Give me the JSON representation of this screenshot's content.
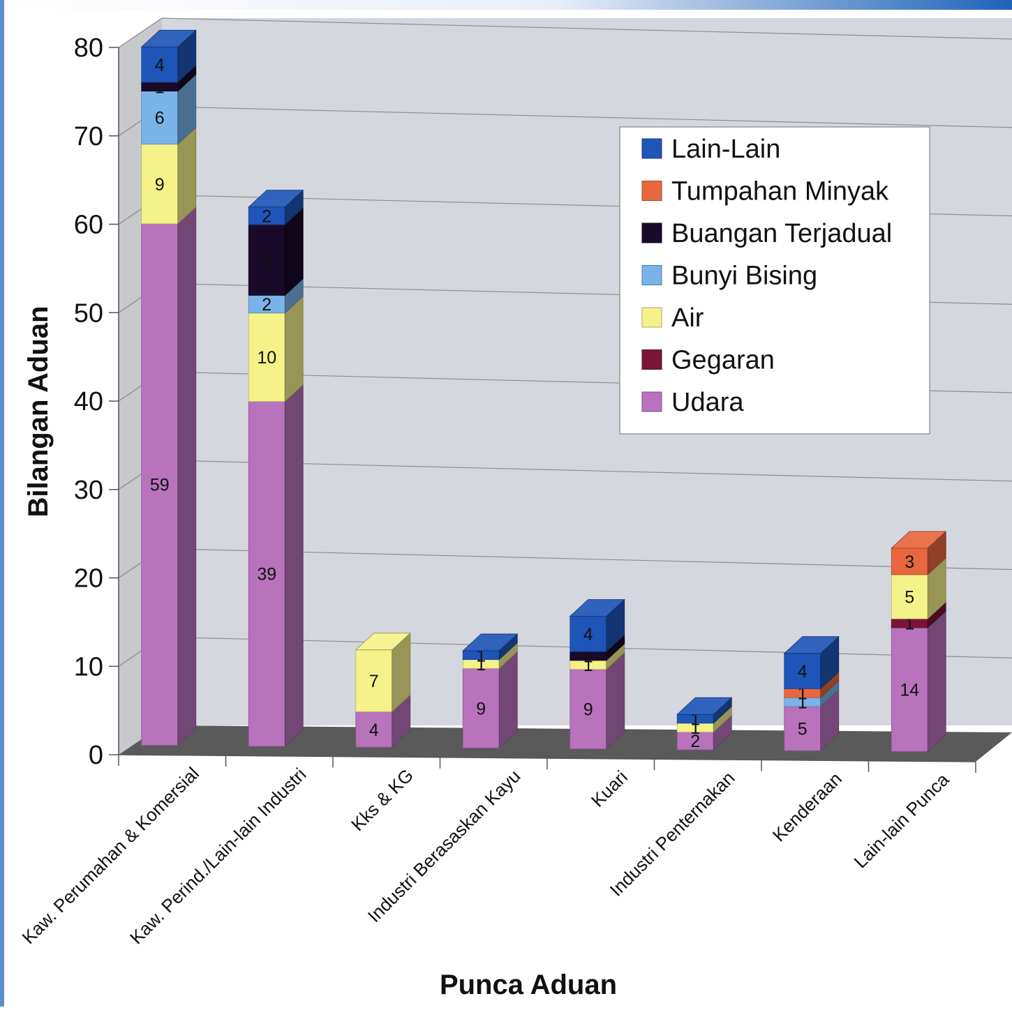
{
  "colors": {
    "Lain-Lain": "#1f55b8",
    "Tumpahan Minyak": "#e8673f",
    "Buangan Terjadual": "#1a0a2a",
    "Bunyi Bising": "#79b3e8",
    "Air": "#f5f28a",
    "Gegaran": "#7a1438",
    "Udara": "#b873bc"
  },
  "chart_data": {
    "type": "bar",
    "stacked": true,
    "three_d": true,
    "xlabel": "Punca Aduan",
    "ylabel": "Bilangan Aduan",
    "ylim": [
      0,
      80
    ],
    "yticks": [
      "0",
      "10",
      "20",
      "30",
      "40",
      "50",
      "60",
      "70",
      "80"
    ],
    "grid": true,
    "legend_position": "top-right",
    "categories": [
      "Kaw. Perumahan & Komersial",
      "Kaw. Perind./Lain-lain Industri",
      "Kks & KG",
      "Industri Berasaskan Kayu",
      "Kuari",
      "Industri Penternakan",
      "Kenderaan",
      "Lain-lain Punca"
    ],
    "series": [
      {
        "name": "Udara",
        "values": [
          59,
          39,
          4,
          9,
          9,
          2,
          5,
          14
        ]
      },
      {
        "name": "Gegaran",
        "values": [
          0,
          0,
          0,
          0,
          0,
          0,
          0,
          1
        ]
      },
      {
        "name": "Air",
        "values": [
          9,
          10,
          7,
          1,
          1,
          1,
          0,
          5
        ]
      },
      {
        "name": "Bunyi Bising",
        "values": [
          6,
          2,
          0,
          0,
          0,
          0,
          1,
          0
        ]
      },
      {
        "name": "Buangan Terjadual",
        "values": [
          1,
          8,
          0,
          0,
          1,
          0,
          0,
          0
        ]
      },
      {
        "name": "Tumpahan Minyak",
        "values": [
          0,
          0,
          0,
          0,
          0,
          0,
          1,
          3
        ]
      },
      {
        "name": "Lain-Lain",
        "values": [
          4,
          2,
          0,
          1,
          4,
          1,
          4,
          0
        ]
      }
    ],
    "legend": [
      "Lain-Lain",
      "Tumpahan Minyak",
      "Buangan Terjadual",
      "Bunyi Bising",
      "Air",
      "Gegaran",
      "Udara"
    ]
  }
}
